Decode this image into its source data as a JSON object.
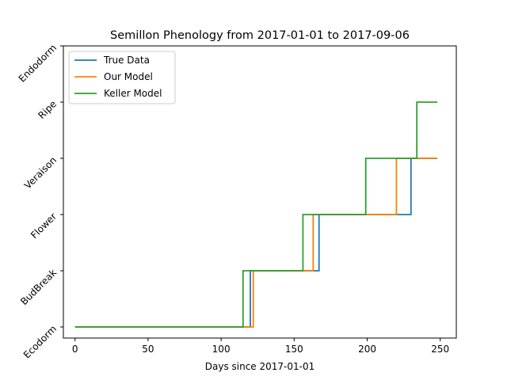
{
  "chart_data": {
    "type": "line",
    "title": "Semillon Phenology from 2017-01-01 to 2017-09-06",
    "xlabel": "Days since 2017-01-01",
    "ylabel": "",
    "xlim": [
      -8,
      261
    ],
    "ylim": [
      0,
      5
    ],
    "x_ticks": [
      0,
      50,
      100,
      150,
      200,
      250
    ],
    "y_ticks": [
      {
        "value": 0,
        "label": "Ecodorm"
      },
      {
        "value": 1,
        "label": "BudBreak"
      },
      {
        "value": 2,
        "label": "Flower"
      },
      {
        "value": 3,
        "label": "Veraison"
      },
      {
        "value": 4,
        "label": "Ripe"
      },
      {
        "value": 5,
        "label": "Endodorm"
      }
    ],
    "grid": false,
    "legend": "top-left",
    "series": [
      {
        "name": "True Data",
        "color": "#1f77b4",
        "points": [
          [
            0,
            0
          ],
          [
            120,
            0
          ],
          [
            120,
            1
          ],
          [
            167,
            1
          ],
          [
            167,
            2
          ],
          [
            230,
            2
          ],
          [
            230,
            3
          ],
          [
            248,
            3
          ]
        ]
      },
      {
        "name": "Our Model",
        "color": "#ff7f0e",
        "points": [
          [
            0,
            0
          ],
          [
            122,
            0
          ],
          [
            122,
            1
          ],
          [
            163,
            1
          ],
          [
            163,
            2
          ],
          [
            220,
            2
          ],
          [
            220,
            3
          ],
          [
            248,
            3
          ]
        ]
      },
      {
        "name": "Keller Model",
        "color": "#2ca02c",
        "points": [
          [
            0,
            0
          ],
          [
            115,
            0
          ],
          [
            115,
            1
          ],
          [
            156,
            1
          ],
          [
            156,
            2
          ],
          [
            199,
            2
          ],
          [
            199,
            3
          ],
          [
            234,
            3
          ],
          [
            234,
            4
          ],
          [
            248,
            4
          ]
        ]
      }
    ]
  }
}
